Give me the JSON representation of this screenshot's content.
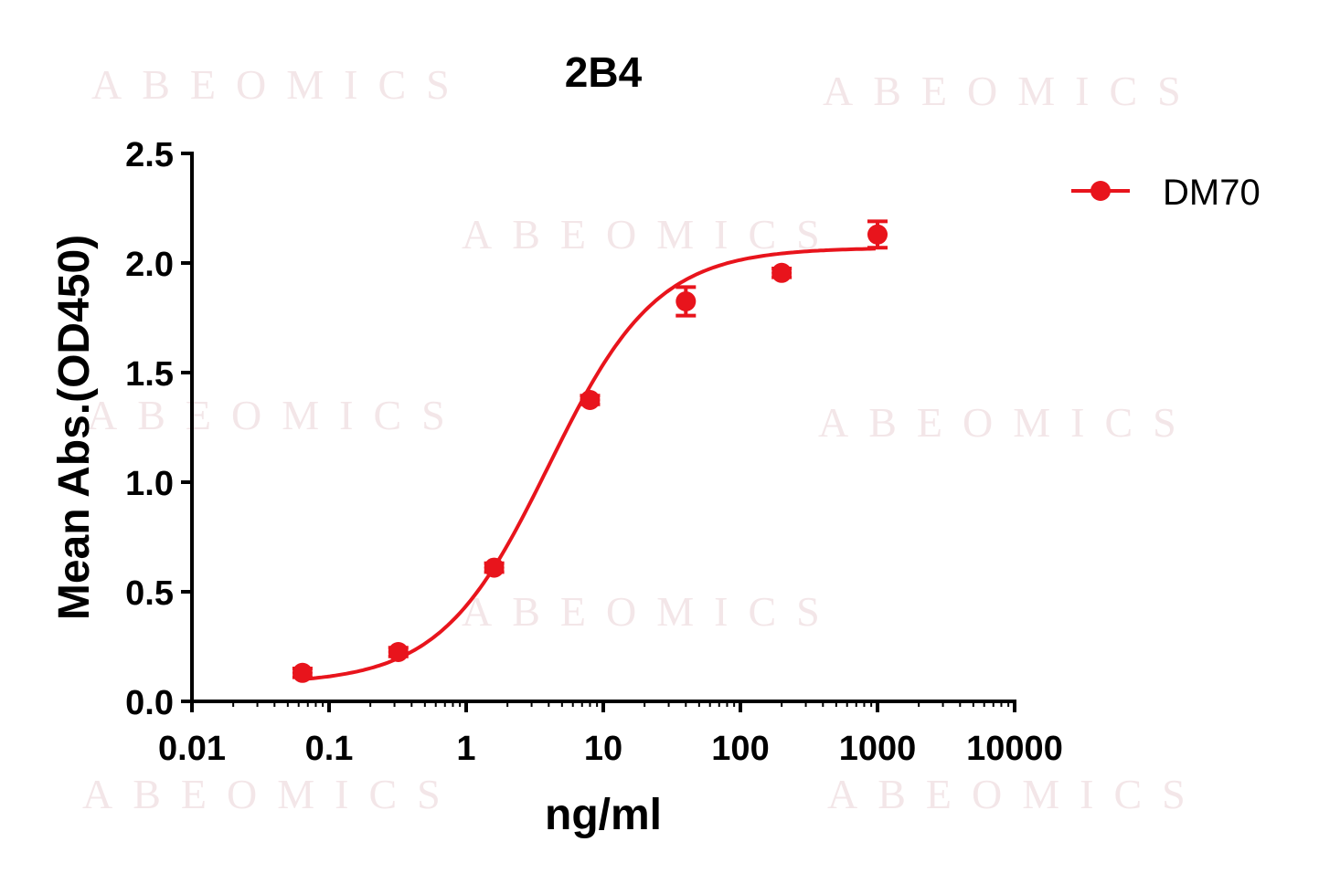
{
  "watermark": "ABEOMICS",
  "chart_data": {
    "type": "scatter",
    "title": "2B4",
    "xlabel": "ng/ml",
    "ylabel": "Mean Abs.(OD450)",
    "xscale": "log",
    "xlim": [
      0.01,
      10000
    ],
    "ylim": [
      0,
      2.5
    ],
    "xticks": [
      "0.01",
      "0.1",
      "1",
      "10",
      "100",
      "1000",
      "10000"
    ],
    "yticks": [
      "0.0",
      "0.5",
      "1.0",
      "1.5",
      "2.0",
      "2.5"
    ],
    "grid": false,
    "legend_position": "top-right",
    "fit": "sigmoidal dose-response curve",
    "series": [
      {
        "name": "DM70",
        "color": "#e8141c",
        "x": [
          0.064,
          0.32,
          1.6,
          8,
          40,
          200,
          1000
        ],
        "y": [
          0.13,
          0.225,
          0.61,
          1.375,
          1.825,
          1.955,
          2.13
        ],
        "error": [
          0.02,
          0.02,
          0.02,
          0.02,
          0.065,
          0.02,
          0.06
        ]
      }
    ]
  }
}
